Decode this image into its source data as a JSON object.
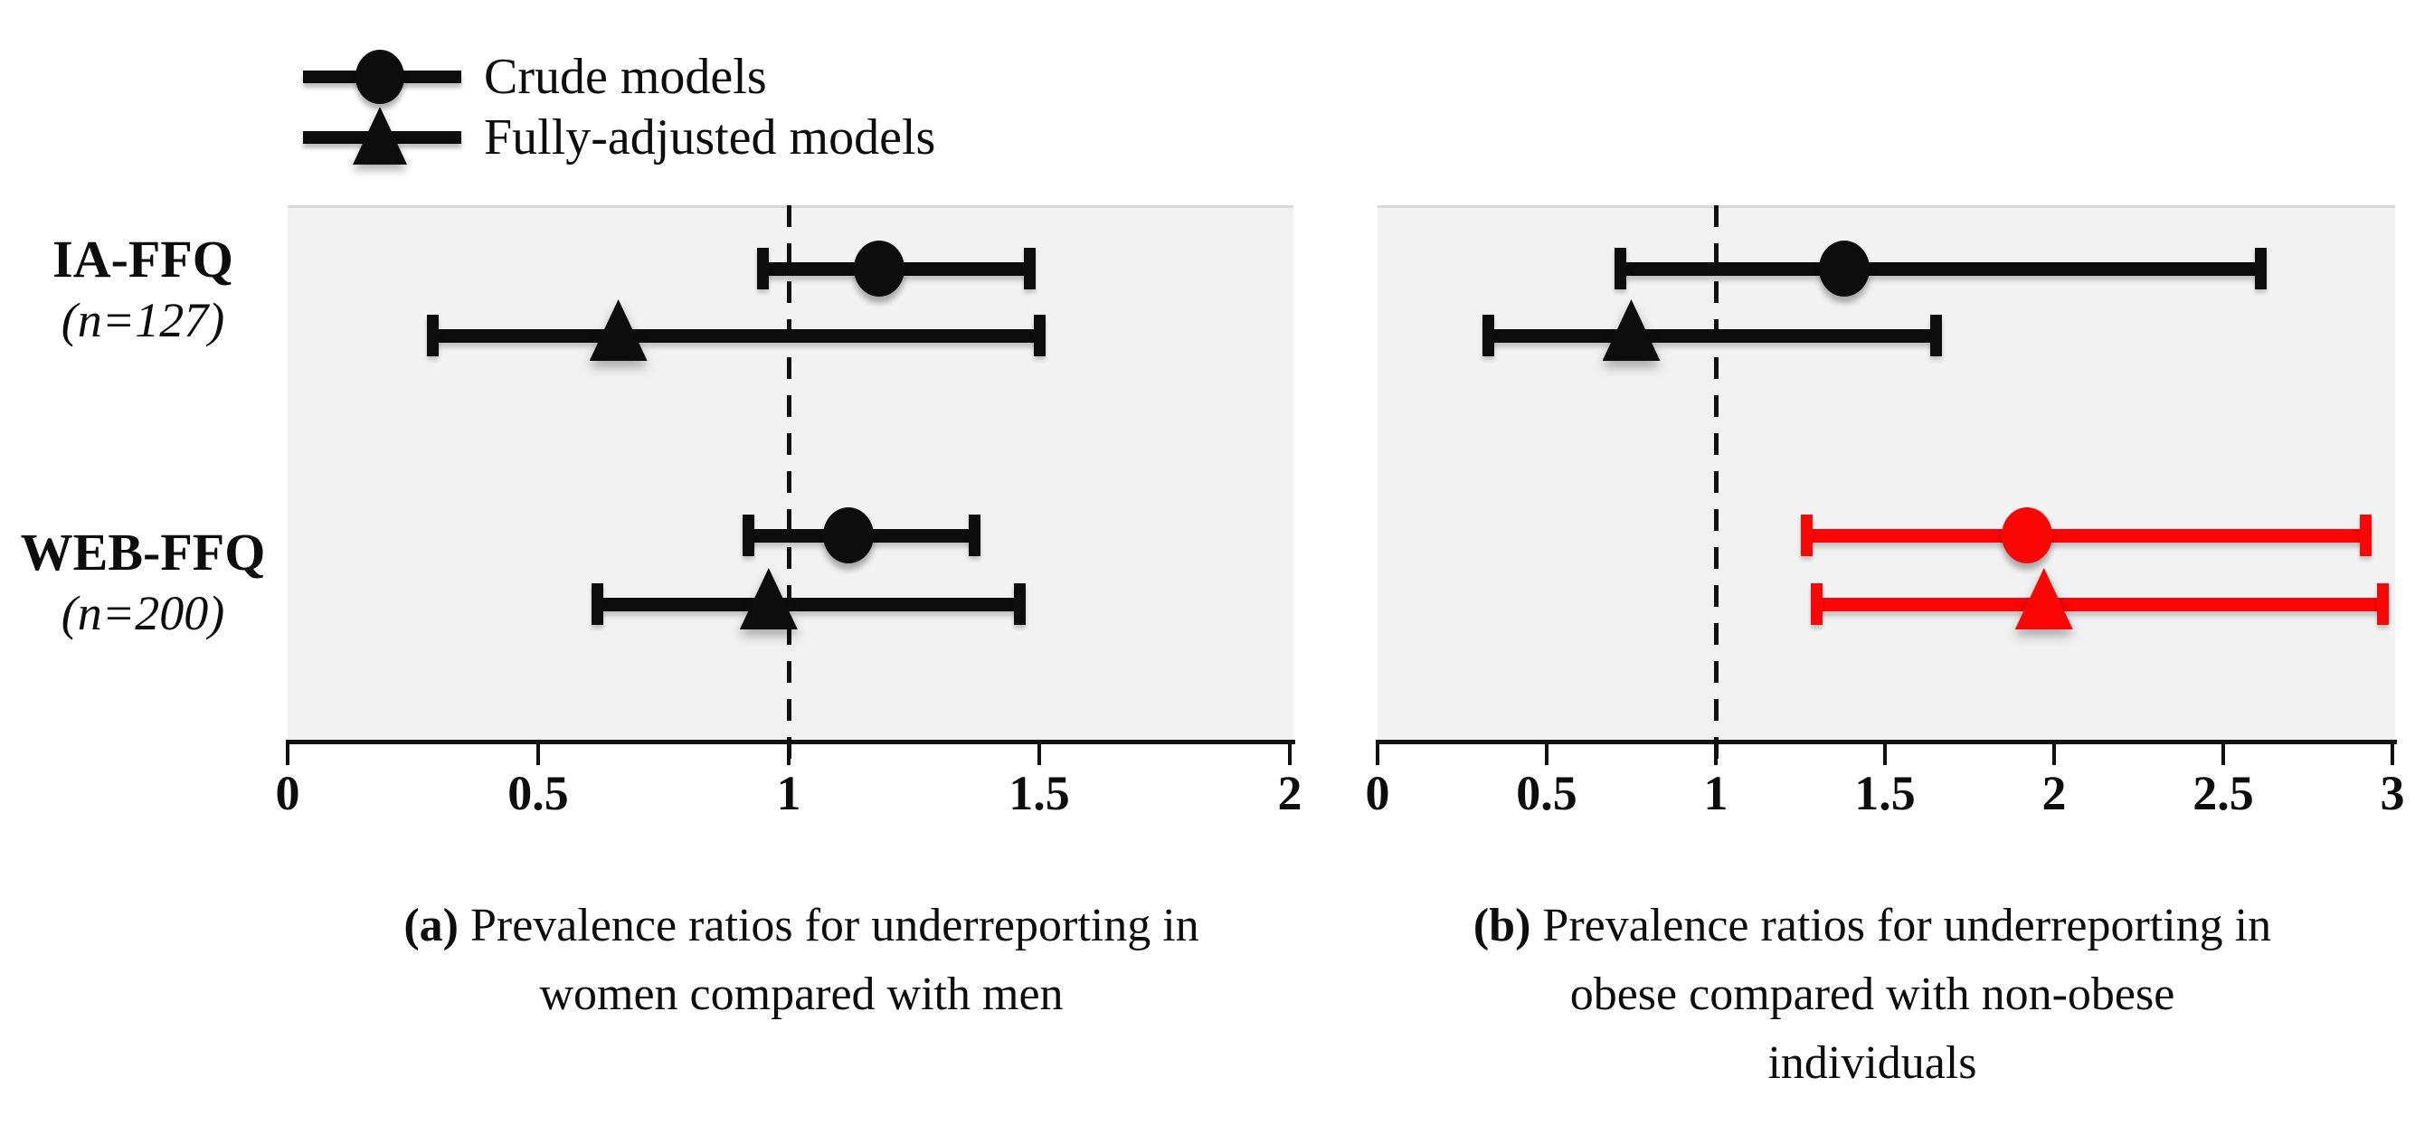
{
  "figure": {
    "background": "#ffffff",
    "panel_background": "#f2f2f2"
  },
  "colors": {
    "black": "#0d0d0d",
    "red": "#fb0505"
  },
  "legend": {
    "items": [
      {
        "label": "Crude models",
        "marker": "circle"
      },
      {
        "label": "Fully-adjusted models",
        "marker": "triangle"
      }
    ]
  },
  "groups": [
    {
      "label": "IA-FFQ",
      "n_label": "(n=127)"
    },
    {
      "label": "WEB-FFQ",
      "n_label": "(n=200)"
    }
  ],
  "chart_data": [
    {
      "type": "forest",
      "panel": "a",
      "caption_prefix": "(a)",
      "caption_lines": [
        "Prevalence ratios for underreporting in",
        "women compared with men"
      ],
      "xlim": [
        0,
        2
      ],
      "xticks": [
        0,
        0.5,
        1,
        1.5,
        2
      ],
      "xtick_labels": [
        "0",
        "0.5",
        "1",
        "1.5",
        "2"
      ],
      "reference_line": 1,
      "grid": false,
      "rows": [
        {
          "group": "IA-FFQ",
          "model": "Crude",
          "marker": "circle",
          "color_key": "black",
          "pr": 1.18,
          "ci_low": 0.95,
          "ci_high": 1.48
        },
        {
          "group": "IA-FFQ",
          "model": "Fully-adjusted",
          "marker": "triangle",
          "color_key": "black",
          "pr": 0.66,
          "ci_low": 0.29,
          "ci_high": 1.5
        },
        {
          "group": "WEB-FFQ",
          "model": "Crude",
          "marker": "circle",
          "color_key": "black",
          "pr": 1.12,
          "ci_low": 0.92,
          "ci_high": 1.37
        },
        {
          "group": "WEB-FFQ",
          "model": "Fully-adjusted",
          "marker": "triangle",
          "color_key": "black",
          "pr": 0.96,
          "ci_low": 0.62,
          "ci_high": 1.46
        }
      ]
    },
    {
      "type": "forest",
      "panel": "b",
      "caption_prefix": "(b)",
      "caption_lines": [
        "Prevalence ratios for underreporting in",
        "obese compared with non-obese",
        "individuals"
      ],
      "xlim": [
        0,
        3
      ],
      "xticks": [
        0,
        0.5,
        1,
        1.5,
        2,
        2.5,
        3
      ],
      "xtick_labels": [
        "0",
        "0.5",
        "1",
        "1.5",
        "2",
        "2.5",
        "3"
      ],
      "reference_line": 1,
      "grid": false,
      "rows": [
        {
          "group": "IA-FFQ",
          "model": "Crude",
          "marker": "circle",
          "color_key": "black",
          "pr": 1.38,
          "ci_low": 0.72,
          "ci_high": 2.61
        },
        {
          "group": "IA-FFQ",
          "model": "Fully-adjusted",
          "marker": "triangle",
          "color_key": "black",
          "pr": 0.75,
          "ci_low": 0.33,
          "ci_high": 1.65
        },
        {
          "group": "WEB-FFQ",
          "model": "Crude",
          "marker": "circle",
          "color_key": "red",
          "pr": 1.92,
          "ci_low": 1.27,
          "ci_high": 2.92
        },
        {
          "group": "WEB-FFQ",
          "model": "Fully-adjusted",
          "marker": "triangle",
          "color_key": "red",
          "pr": 1.97,
          "ci_low": 1.3,
          "ci_high": 2.97
        }
      ]
    }
  ]
}
